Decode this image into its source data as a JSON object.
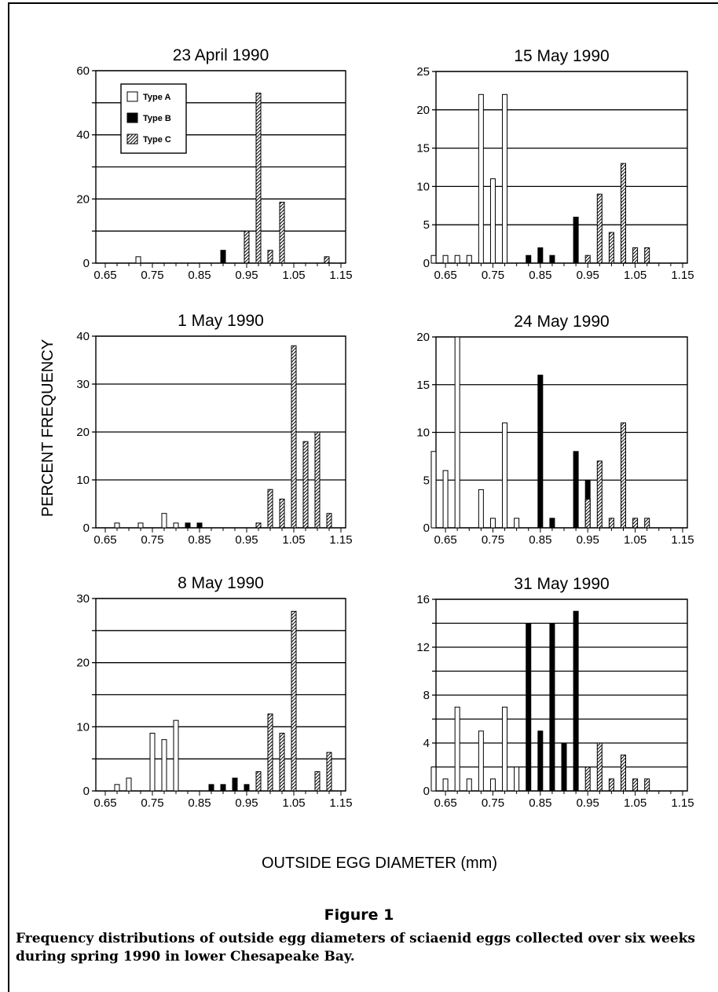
{
  "figure": {
    "ylabel": "PERCENT FREQUENCY",
    "xlabel": "OUTSIDE EGG DIAMETER (mm)",
    "caption_title": "Figure 1",
    "caption_text": "Frequency distributions of outside egg diameters of sciaenid eggs collected over six weeks during spring 1990 in lower Chesapeake Bay.",
    "legend": [
      {
        "label": "Type A",
        "fill": "white"
      },
      {
        "label": "Type B",
        "fill": "black"
      },
      {
        "label": "Type C",
        "fill": "hatched"
      }
    ],
    "colors": {
      "ink": "#000000",
      "paper": "#ffffff"
    }
  },
  "chart_data": [
    {
      "type": "bar",
      "title": "23 April 1990",
      "xlim": [
        0.63,
        1.16
      ],
      "ylim": [
        0,
        60
      ],
      "yticks": [
        0,
        20,
        40,
        60
      ],
      "gridlines": [
        0,
        10,
        20,
        30,
        40,
        50,
        60
      ],
      "xticks": [
        "0.65",
        "0.75",
        "0.85",
        "0.95",
        "1.05",
        "1.15"
      ],
      "series": [
        {
          "name": "Type A",
          "x": [
            0.72
          ],
          "values": [
            2
          ]
        },
        {
          "name": "Type B",
          "x": [
            0.9
          ],
          "values": [
            4
          ]
        },
        {
          "name": "Type C",
          "x": [
            0.95,
            0.975,
            1.0,
            1.025,
            1.12
          ],
          "values": [
            10,
            53,
            4,
            19,
            2
          ]
        }
      ]
    },
    {
      "type": "bar",
      "title": "15 May 1990",
      "xlim": [
        0.63,
        1.16
      ],
      "ylim": [
        0,
        25
      ],
      "yticks": [
        0,
        5,
        10,
        15,
        20,
        25
      ],
      "gridlines": [
        0,
        5,
        10,
        15,
        20,
        25
      ],
      "xticks": [
        "0.65",
        "0.75",
        "0.85",
        "0.95",
        "1.05",
        "1.15"
      ],
      "series": [
        {
          "name": "Type A",
          "x": [
            0.625,
            0.65,
            0.675,
            0.7,
            0.725,
            0.75,
            0.775
          ],
          "values": [
            1,
            1,
            1,
            1,
            22,
            11,
            22
          ]
        },
        {
          "name": "Type B",
          "x": [
            0.825,
            0.85,
            0.875,
            0.925
          ],
          "values": [
            1,
            2,
            1,
            6
          ]
        },
        {
          "name": "Type C",
          "x": [
            0.95,
            0.975,
            1.0,
            1.025,
            1.05,
            1.075
          ],
          "values": [
            1,
            9,
            4,
            13,
            2,
            2
          ]
        }
      ]
    },
    {
      "type": "bar",
      "title": "1 May 1990",
      "xlim": [
        0.63,
        1.16
      ],
      "ylim": [
        0,
        40
      ],
      "yticks": [
        0,
        10,
        20,
        30,
        40
      ],
      "gridlines": [
        0,
        10,
        20,
        30,
        40
      ],
      "xticks": [
        "0.65",
        "0.75",
        "0.85",
        "0.95",
        "1.05",
        "1.15"
      ],
      "series": [
        {
          "name": "Type A",
          "x": [
            0.675,
            0.725,
            0.775,
            0.8
          ],
          "values": [
            1,
            1,
            3,
            1
          ]
        },
        {
          "name": "Type B",
          "x": [
            0.825,
            0.85
          ],
          "values": [
            1,
            1
          ]
        },
        {
          "name": "Type C",
          "x": [
            0.975,
            1.0,
            1.025,
            1.05,
            1.075,
            1.1,
            1.125
          ],
          "values": [
            1,
            8,
            6,
            38,
            18,
            20,
            3
          ]
        }
      ]
    },
    {
      "type": "bar",
      "title": "24 May 1990",
      "xlim": [
        0.63,
        1.16
      ],
      "ylim": [
        0,
        20
      ],
      "yticks": [
        0,
        5,
        10,
        15,
        20
      ],
      "gridlines": [
        0,
        5,
        10,
        15,
        20
      ],
      "xticks": [
        "0.65",
        "0.75",
        "0.85",
        "0.95",
        "1.05",
        "1.15"
      ],
      "series": [
        {
          "name": "Type A",
          "x": [
            0.625,
            0.65,
            0.675,
            0.725,
            0.75,
            0.775,
            0.8
          ],
          "values": [
            8,
            6,
            20,
            4,
            1,
            11,
            1
          ]
        },
        {
          "name": "Type B",
          "x": [
            0.85,
            0.875,
            0.925,
            0.95
          ],
          "values": [
            16,
            1,
            8,
            5
          ]
        },
        {
          "name": "Type C",
          "x": [
            0.95,
            0.975,
            1.0,
            1.025,
            1.05,
            1.075
          ],
          "values": [
            3,
            7,
            1,
            11,
            1,
            1
          ]
        }
      ]
    },
    {
      "type": "bar",
      "title": "8 May 1990",
      "xlim": [
        0.63,
        1.16
      ],
      "ylim": [
        0,
        30
      ],
      "yticks": [
        0,
        10,
        20,
        30
      ],
      "gridlines": [
        0,
        5,
        10,
        15,
        20,
        25,
        30
      ],
      "xticks": [
        "0.65",
        "0.75",
        "0.85",
        "0.95",
        "1.05",
        "1.15"
      ],
      "series": [
        {
          "name": "Type A",
          "x": [
            0.675,
            0.7,
            0.75,
            0.775,
            0.8
          ],
          "values": [
            1,
            2,
            9,
            8,
            11
          ]
        },
        {
          "name": "Type B",
          "x": [
            0.875,
            0.9,
            0.925,
            0.95
          ],
          "values": [
            1,
            1,
            2,
            1
          ]
        },
        {
          "name": "Type C",
          "x": [
            0.975,
            1.0,
            1.025,
            1.05,
            1.1,
            1.125
          ],
          "values": [
            3,
            12,
            9,
            28,
            3,
            6
          ]
        }
      ]
    },
    {
      "type": "bar",
      "title": "31 May 1990",
      "xlim": [
        0.63,
        1.16
      ],
      "ylim": [
        0,
        16
      ],
      "yticks": [
        0,
        4,
        8,
        12,
        16
      ],
      "gridlines": [
        0,
        2,
        4,
        6,
        8,
        10,
        12,
        14,
        16
      ],
      "xticks": [
        "0.65",
        "0.75",
        "0.85",
        "0.95",
        "1.05",
        "1.15"
      ],
      "series": [
        {
          "name": "Type A",
          "x": [
            0.625,
            0.65,
            0.675,
            0.7,
            0.725,
            0.75,
            0.775,
            0.8
          ],
          "values": [
            2,
            1,
            7,
            1,
            5,
            1,
            7,
            2
          ]
        },
        {
          "name": "Type B",
          "x": [
            0.825,
            0.85,
            0.875,
            0.9,
            0.925
          ],
          "values": [
            14,
            5,
            14,
            4,
            15
          ]
        },
        {
          "name": "Type C",
          "x": [
            0.95,
            0.975,
            1.0,
            1.025,
            1.05,
            1.075
          ],
          "values": [
            2,
            4,
            1,
            3,
            1,
            1
          ]
        }
      ]
    }
  ]
}
